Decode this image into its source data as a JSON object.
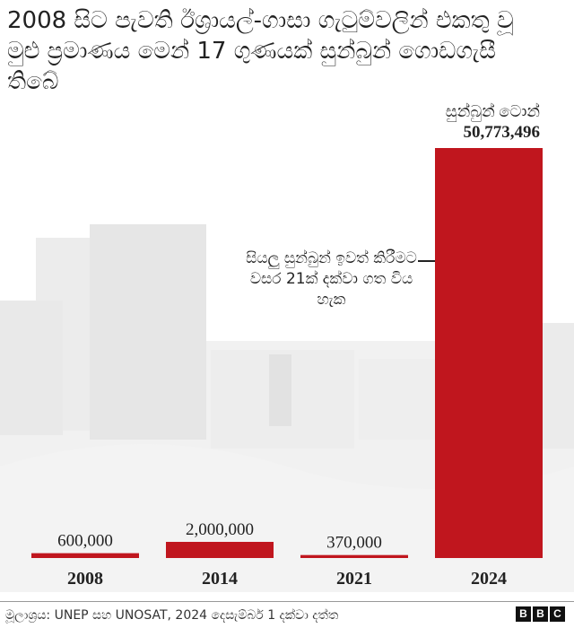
{
  "title": "2008 සිට පැවති ඊශ්‍රායල්-ගාසා ගැටුම්වලින් එකතු වූ මුළු ප්‍රමාණය මෙන් 17 ගුණයක් සුන්බුන් ගොඩගැසී තිබේ",
  "colors": {
    "bar": "#c0161e",
    "text": "#222222"
  },
  "chart_data": {
    "type": "bar",
    "categories": [
      "2008",
      "2014",
      "2021",
      "2024"
    ],
    "values": [
      600000,
      2000000,
      370000,
      50773496
    ],
    "value_labels": [
      "600,000",
      "2,000,000",
      "370,000",
      "50,773,496"
    ],
    "unit_label": "සුන්බුන් ටොන්",
    "annotation": "සියලු සුන්බුන් ඉවත් කිරීමට වසර 21ක් දක්වා ගත විය හැක",
    "ylim": [
      0,
      50773496
    ],
    "grid": false,
    "legend": "none"
  },
  "footer": {
    "source": "මූලාශ්‍රය: UNEP සහ UNOSAT, 2024 දෙසැම්බර් 1 දක්වා දත්ත",
    "logo_letters": [
      "B",
      "B",
      "C"
    ]
  }
}
